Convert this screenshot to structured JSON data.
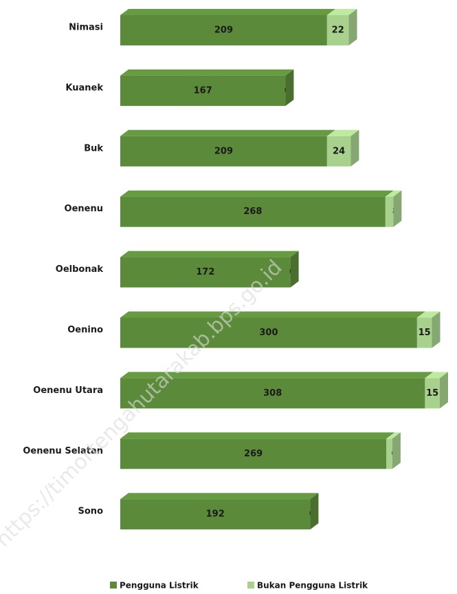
{
  "chart_data": {
    "type": "bar3d-stacked-horizontal",
    "categories": [
      "Nimasi",
      "Kuanek",
      "Buk",
      "Oenenu",
      "Oelbonak",
      "Oenino",
      "Oenenu Utara",
      "Oenenu Selatan",
      "Sono"
    ],
    "series": [
      {
        "name": "Pengguna Listrik",
        "color": "#5b8a3a",
        "values": [
          209,
          167,
          209,
          268,
          172,
          300,
          308,
          269,
          192
        ]
      },
      {
        "name": "Bukan Pengguna Listrik",
        "color": "#a9d18e",
        "values": [
          22,
          0,
          24,
          8,
          0,
          15,
          15,
          6,
          0
        ]
      }
    ],
    "legend": "bottom",
    "watermark": "https://timortengahutarakab.bps.go.id"
  }
}
